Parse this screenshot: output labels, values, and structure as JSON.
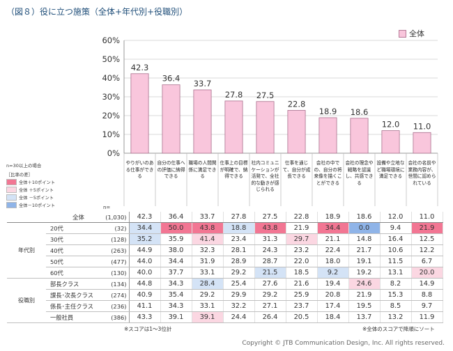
{
  "title": "（図８）役に立つ施策（全体+年代別+役職別）",
  "legend": "全体",
  "colors": {
    "bar": "#f9c6dc",
    "bar_stroke": "#a9708d",
    "plus10": "#f27693",
    "plus5": "#fbd7e2",
    "minus5": "#d4e3f6",
    "minus10": "#8fb4e8"
  },
  "notes": {
    "n30": "n=30以上の場合",
    "diff_header": "［比率の差］",
    "key_plus10": "全体＋10ポイント",
    "key_plus5": "全体 ＋5ポイント",
    "key_minus5": "全体 －5ポイント",
    "key_minus10": "全体－10ポイント",
    "n_label": "n=",
    "score_note": "※スコアは1～3位計",
    "sort_note": "※全体のスコアで降順にソート"
  },
  "copyright": "Copyright © JTB Communication Design, Inc. All rights reserved.",
  "chart_data": {
    "type": "bar",
    "categories": [
      "やりがいのある仕事ができる",
      "自分の仕事への評価に納得できる",
      "職場の人間関係に満足できる",
      "仕事上の目標が明確で、納得できる",
      "社内コミュニケーションが活発で、全社的な動きが感じられる",
      "仕事を通じて、自分が成長できる",
      "会社の中での、自分の将来像を描くことができる",
      "会社の理念や戦略を認識し、共感できる",
      "設備や立地など職場環境に満足できる",
      "会社の名前や業務内容が、世間に認められている"
    ],
    "series": [
      {
        "name": "全体",
        "values": [
          42.3,
          36.4,
          33.7,
          27.8,
          27.5,
          22.8,
          18.9,
          18.6,
          12.0,
          11.0
        ]
      }
    ],
    "value_labels": [
      "42.3",
      "36.4",
      "33.7",
      "27.8",
      "27.5",
      "22.8",
      "18.9",
      "18.6",
      "12.0",
      "11.0"
    ],
    "yticks": [
      "0%",
      "10%",
      "20%",
      "30%",
      "40%",
      "50%",
      "60%"
    ],
    "ylim": [
      0,
      60
    ],
    "grid": true,
    "legend_position": "top-right"
  },
  "table": {
    "rows": [
      {
        "group": "",
        "label": "全体",
        "n": "(1,030)",
        "values": [
          "42.3",
          "36.4",
          "33.7",
          "27.8",
          "27.5",
          "22.8",
          "18.9",
          "18.6",
          "12.0",
          "11.0"
        ],
        "hl": [
          "",
          "",
          "",
          "",
          "",
          "",
          "",
          "",
          "",
          ""
        ]
      },
      {
        "group": "年代別",
        "label": "20代",
        "n": "(32)",
        "values": [
          "34.4",
          "50.0",
          "43.8",
          "18.8",
          "43.8",
          "21.9",
          "34.4",
          "0.0",
          "9.4",
          "21.9"
        ],
        "hl": [
          "m5",
          "p10",
          "p10",
          "m5",
          "p10",
          "",
          "p10",
          "m10",
          "",
          "p10"
        ]
      },
      {
        "group": "年代別",
        "label": "30代",
        "n": "(128)",
        "values": [
          "35.2",
          "35.9",
          "41.4",
          "23.4",
          "31.3",
          "29.7",
          "21.1",
          "14.8",
          "16.4",
          "12.5"
        ],
        "hl": [
          "m5",
          "",
          "p5",
          "",
          "",
          "p5",
          "",
          "",
          "",
          ""
        ]
      },
      {
        "group": "年代別",
        "label": "40代",
        "n": "(263)",
        "values": [
          "44.9",
          "38.0",
          "32.3",
          "28.1",
          "24.3",
          "23.2",
          "22.4",
          "21.7",
          "10.6",
          "12.2"
        ],
        "hl": [
          "",
          "",
          "",
          "",
          "",
          "",
          "",
          "",
          "",
          ""
        ]
      },
      {
        "group": "年代別",
        "label": "50代",
        "n": "(477)",
        "values": [
          "44.0",
          "34.4",
          "31.9",
          "28.9",
          "28.7",
          "22.0",
          "18.0",
          "19.1",
          "11.5",
          "6.7"
        ],
        "hl": [
          "",
          "",
          "",
          "",
          "",
          "",
          "",
          "",
          "",
          ""
        ]
      },
      {
        "group": "年代別",
        "label": "60代",
        "n": "(130)",
        "values": [
          "40.0",
          "37.7",
          "33.1",
          "29.2",
          "21.5",
          "18.5",
          "9.2",
          "19.2",
          "13.1",
          "20.0"
        ],
        "hl": [
          "",
          "",
          "",
          "",
          "m5",
          "",
          "m5",
          "",
          "",
          "p5"
        ]
      },
      {
        "group": "役職別",
        "label": "部長クラス",
        "n": "(134)",
        "values": [
          "44.8",
          "34.3",
          "28.4",
          "25.4",
          "27.6",
          "21.6",
          "19.4",
          "24.6",
          "8.2",
          "14.9"
        ],
        "hl": [
          "",
          "",
          "m5",
          "",
          "",
          "",
          "",
          "p5",
          "",
          ""
        ]
      },
      {
        "group": "役職別",
        "label": "課長･次長クラス",
        "n": "(274)",
        "values": [
          "40.9",
          "35.4",
          "29.2",
          "29.9",
          "29.2",
          "25.9",
          "20.8",
          "21.9",
          "15.3",
          "8.8"
        ],
        "hl": [
          "",
          "",
          "",
          "",
          "",
          "",
          "",
          "",
          "",
          ""
        ]
      },
      {
        "group": "役職別",
        "label": "係長･主任クラス",
        "n": "(236)",
        "values": [
          "41.1",
          "34.3",
          "33.1",
          "32.2",
          "27.1",
          "23.7",
          "17.4",
          "19.5",
          "8.5",
          "9.7"
        ],
        "hl": [
          "",
          "",
          "",
          "",
          "",
          "",
          "",
          "",
          "",
          ""
        ]
      },
      {
        "group": "役職別",
        "label": "一般社員",
        "n": "(386)",
        "values": [
          "43.3",
          "39.1",
          "39.1",
          "24.4",
          "26.4",
          "20.5",
          "18.4",
          "13.7",
          "13.2",
          "11.9"
        ],
        "hl": [
          "",
          "",
          "p5",
          "",
          "",
          "",
          "",
          "",
          "",
          ""
        ]
      }
    ]
  }
}
